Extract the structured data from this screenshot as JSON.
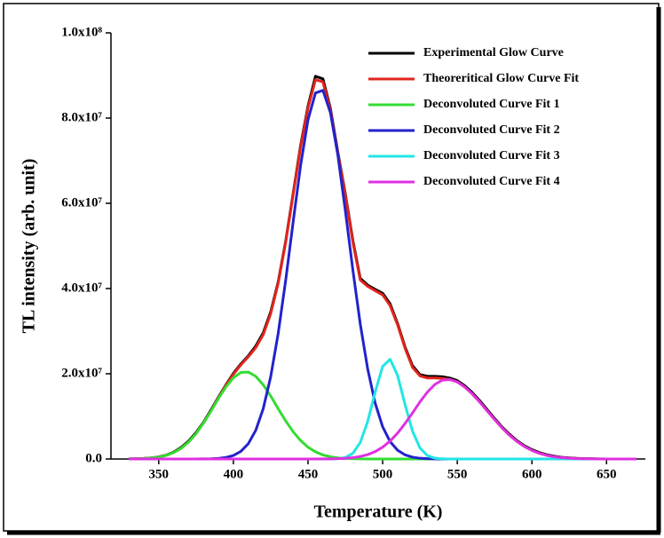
{
  "chart_data": {
    "type": "line",
    "xlabel": "Temperature (K)",
    "ylabel": "TL intensity (arb. unit)",
    "x": [
      330,
      335,
      340,
      345,
      350,
      355,
      360,
      365,
      370,
      375,
      380,
      385,
      390,
      395,
      400,
      405,
      410,
      415,
      420,
      425,
      430,
      435,
      440,
      445,
      450,
      455,
      460,
      465,
      470,
      475,
      480,
      485,
      490,
      495,
      500,
      505,
      510,
      515,
      520,
      525,
      530,
      535,
      540,
      545,
      550,
      555,
      560,
      565,
      570,
      575,
      580,
      585,
      590,
      595,
      600,
      605,
      610,
      615,
      620,
      625,
      630,
      635,
      640,
      645,
      650,
      655,
      660,
      665,
      670
    ],
    "xlim": [
      318,
      676
    ],
    "xticks": [
      350,
      400,
      450,
      500,
      550,
      600,
      650
    ],
    "ylim": [
      0,
      100000000
    ],
    "yticks": [
      {
        "value": 0,
        "label": "0.0"
      },
      {
        "value": 20000000,
        "label": "2.0x10⁷"
      },
      {
        "value": 40000000,
        "label": "4.0x10⁷"
      },
      {
        "value": 60000000,
        "label": "6.0x10⁷"
      },
      {
        "value": 80000000,
        "label": "8.0x10⁷"
      },
      {
        "value": 100000000,
        "label": "1.0x10⁸"
      }
    ],
    "legend": "upper right",
    "series": [
      {
        "name": "Experimental Glow Curve",
        "color": "#000000",
        "values": [
          20000.0,
          50000.0,
          120000.0,
          250000.0,
          500000.0,
          900000.0,
          1600000.0,
          2700000.0,
          4200000.0,
          6200000.0,
          8600000.0,
          11500000.0,
          14500000.0,
          17400000.0,
          20100000.0,
          22300000.0,
          24200000.0,
          26500000.0,
          29600000.0,
          34500000.0,
          41500000.0,
          51000000.0,
          62200000.0,
          73500000.0,
          82800000.0,
          89800000.0,
          89200000.0,
          82300000.0,
          72000000.0,
          62300000.0,
          51400000.0,
          42400000.0,
          40800000.0,
          39800000.0,
          38900000.0,
          36400000.0,
          31800000.0,
          26300000.0,
          21900000.0,
          19800000.0,
          19400000.0,
          19400000.0,
          19300000.0,
          19000000.0,
          18400000.0,
          17200000.0,
          15600000.0,
          13700000.0,
          11600000.0,
          9500000.0,
          7500000.0,
          5800000.0,
          4300000.0,
          3100000.0,
          2200000.0,
          1500000.0,
          1000000.0,
          650000.0,
          400000.0,
          250000.0,
          150000.0,
          90000.0,
          50000.0,
          20000.0,
          10000.0,
          0,
          0,
          0,
          0
        ]
      },
      {
        "name": "Theoreritical Glow Curve Fit",
        "color": "#e3241c",
        "values": [
          20000.0,
          50000.0,
          110000.0,
          230000.0,
          450000.0,
          850000.0,
          1510000.0,
          2510000.0,
          3980000.0,
          5970000.0,
          8450000.0,
          11300000.0,
          14340000.0,
          17260000.0,
          19890000.0,
          22080000.0,
          23980000.0,
          26130000.0,
          29200000.0,
          34100000.0,
          41200000.0,
          50770000.0,
          61920000.0,
          73140000.0,
          82370000.0,
          89000000.0,
          88500000.0,
          81850000.0,
          71710000.0,
          62000000.0,
          51000000.0,
          42000000.0,
          40500000.0,
          39500000.0,
          38500000.0,
          36000000.0,
          31500000.0,
          26000000.0,
          21500000.0,
          19500000.0,
          19000000.0,
          19000000.0,
          18900000.0,
          18650000.0,
          18100000.0,
          16900000.0,
          15300000.0,
          13400000.0,
          11300000.0,
          9260000.0,
          7310000.0,
          5570000.0,
          4110000.0,
          2930000.0,
          2010000.0,
          1340000.0,
          860000.0,
          530000.0,
          320000.0,
          190000.0,
          100000.0,
          60000.0,
          30000.0,
          10000.0,
          0,
          0,
          0,
          0,
          0
        ]
      },
      {
        "name": "Deconvoluted Curve Fit 1",
        "color": "#33dd33",
        "values": [
          20000.0,
          50000.0,
          110000.0,
          230000.0,
          450000.0,
          850000.0,
          1510000.0,
          2510000.0,
          3980000.0,
          5970000.0,
          8430000.0,
          11250000.0,
          14200000.0,
          16900000.0,
          19070000.0,
          20300000.0,
          20400000.0,
          19400000.0,
          17400000.0,
          14800000.0,
          11800000.0,
          8970000.0,
          6420000.0,
          4340000.0,
          2770000.0,
          1680000.0,
          950000.0,
          520000.0,
          260000.0,
          130000.0,
          60000.0,
          20000.0,
          0,
          0,
          0,
          0,
          0,
          0,
          0,
          0,
          0,
          0,
          0,
          0,
          0,
          0,
          0,
          0,
          0,
          0,
          0,
          0,
          0,
          0,
          0,
          0,
          0,
          0,
          0,
          0,
          0,
          0,
          0,
          0,
          0,
          0,
          0,
          0,
          0
        ]
      },
      {
        "name": "Deconvoluted Curve Fit 2",
        "color": "#2222cc",
        "values": [
          0,
          0,
          0,
          0,
          0,
          0,
          0,
          0,
          0,
          0,
          20000.0,
          50000.0,
          140000.0,
          360000.0,
          820000.0,
          1780000.0,
          3580000.0,
          6730000.0,
          11800000.0,
          19300000.0,
          29400000.0,
          41800000.0,
          55500000.0,
          68800000.0,
          79600000.0,
          85900000.0,
          86500000.0,
          81300000.0,
          71300000.0,
          58300000.0,
          44500000.0,
          31700000.0,
          21100000.0,
          13100000.0,
          7560000.0,
          4080000.0,
          2060000.0,
          970000.0,
          430000.0,
          170000.0,
          70000.0,
          20000.0,
          0,
          0,
          0,
          0,
          0,
          0,
          0,
          0,
          0,
          0,
          0,
          0,
          0,
          0,
          0,
          0,
          0,
          0,
          0,
          0,
          0,
          0,
          0,
          0,
          0,
          0,
          0
        ]
      },
      {
        "name": "Deconvoluted Curve Fit 3",
        "color": "#22e5e5",
        "values": [
          0,
          0,
          0,
          0,
          0,
          0,
          0,
          0,
          0,
          0,
          0,
          0,
          0,
          0,
          0,
          0,
          0,
          0,
          0,
          0,
          0,
          0,
          0,
          0,
          0,
          0,
          0,
          0,
          70000.0,
          350000.0,
          1320000.0,
          3860000.0,
          8820000.0,
          15700000.0,
          21700000.0,
          23400000.0,
          19600000.0,
          12800000.0,
          6530000.0,
          2590000.0,
          800000.0,
          190000.0,
          40000.0,
          0,
          0,
          0,
          0,
          0,
          0,
          0,
          0,
          0,
          0,
          0,
          0,
          0,
          0,
          0,
          0,
          0,
          0,
          0,
          0,
          0,
          0,
          0,
          0,
          0,
          0
        ]
      },
      {
        "name": "Deconvoluted Curve Fit 4",
        "color": "#e030e0",
        "values": [
          0,
          0,
          0,
          0,
          0,
          0,
          0,
          0,
          0,
          0,
          0,
          0,
          0,
          0,
          0,
          0,
          0,
          0,
          0,
          0,
          0,
          0,
          0,
          0,
          0,
          0,
          20000.0,
          30000.0,
          80000.0,
          160000.0,
          310000.0,
          580000.0,
          1030000.0,
          1730000.0,
          2770000.0,
          4210000.0,
          6070000.0,
          8320000.0,
          10800000.0,
          13400000.0,
          15700000.0,
          17500000.0,
          18500000.0,
          18650000.0,
          18100000.0,
          16900000.0,
          15300000.0,
          13400000.0,
          11300000.0,
          9260000.0,
          7310000.0,
          5570000.0,
          4110000.0,
          2930000.0,
          2010000.0,
          1340000.0,
          860000.0,
          530000.0,
          320000.0,
          190000.0,
          100000.0,
          60000.0,
          30000.0,
          10000.0,
          0,
          0,
          0,
          0,
          0
        ]
      }
    ]
  }
}
